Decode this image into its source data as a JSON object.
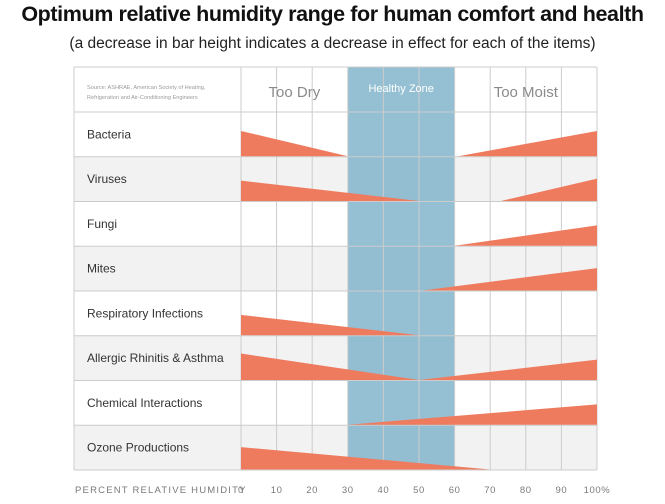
{
  "title": "Optimum relative humidity range for human comfort and health",
  "subtitle": "(a decrease in bar height indicates a decrease in effect for each of the items)",
  "colors": {
    "bar": "#ef7b5f",
    "healthy_zone": "#7eb2c9",
    "row_alt": "#f2f2f2",
    "grid": "#cccccc"
  },
  "chart_data": {
    "type": "area",
    "source_lines": [
      "Source: ASHRAE, American Society of Heating,",
      "Refrigeration and Air-Conditioning Engineers"
    ],
    "zones": [
      {
        "label": "Too Dry",
        "from": 0,
        "to": 30
      },
      {
        "label": "Healthy Zone",
        "from": 30,
        "to": 60
      },
      {
        "label": "Too Moist",
        "from": 60,
        "to": 100
      }
    ],
    "xlabel": "PERCENT RELATIVE HUMIDITY",
    "xlim": [
      0,
      100
    ],
    "x_ticks": [
      "0",
      "10",
      "20",
      "30",
      "40",
      "50",
      "60",
      "70",
      "80",
      "90",
      "100%"
    ],
    "x_tick_values": [
      0,
      10,
      20,
      30,
      40,
      50,
      60,
      70,
      80,
      90,
      100
    ],
    "effect_scale": "relative effect, 1 = maximum",
    "rows": [
      {
        "label": "Bacteria",
        "dry": {
          "from": 0,
          "to": 30,
          "peak": 0.62
        },
        "moist": {
          "from": 61,
          "to": 100,
          "peak": 0.62
        }
      },
      {
        "label": "Viruses",
        "dry": {
          "from": 0,
          "to": 50,
          "peak": 0.5
        },
        "moist": {
          "from": 73,
          "to": 100,
          "peak": 0.55
        }
      },
      {
        "label": "Fungi",
        "dry": null,
        "moist": {
          "from": 60,
          "to": 100,
          "peak": 0.5
        }
      },
      {
        "label": "Mites",
        "dry": null,
        "moist": {
          "from": 51,
          "to": 100,
          "peak": 0.55
        }
      },
      {
        "label": "Respiratory Infections",
        "dry": {
          "from": 0,
          "to": 50,
          "peak": 0.5
        },
        "moist": null
      },
      {
        "label": "Allergic Rhinitis & Asthma",
        "dry": {
          "from": 0,
          "to": 50,
          "peak": 0.65
        },
        "moist": {
          "from": 50,
          "to": 100,
          "peak": 0.5
        }
      },
      {
        "label": "Chemical Interactions",
        "dry": null,
        "moist": {
          "from": 30,
          "to": 100,
          "peak": 0.5
        }
      },
      {
        "label": "Ozone Productions",
        "dry": {
          "from": 0,
          "to": 70,
          "peak": 0.55
        },
        "moist": null
      }
    ]
  }
}
